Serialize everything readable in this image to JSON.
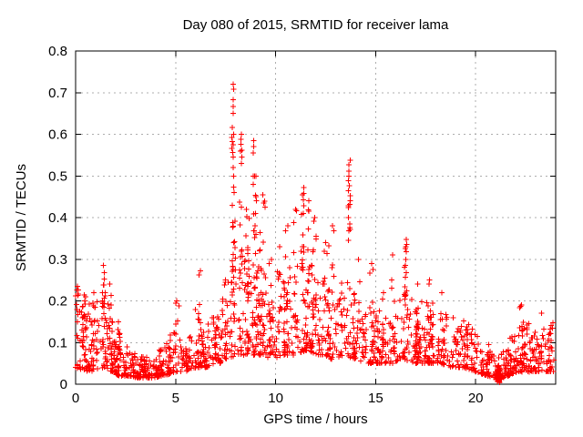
{
  "page": {
    "background": "#ffffff"
  },
  "chart_data": {
    "type": "scatter",
    "title": "Day 080 of 2015, SRMTID for receiver lama",
    "xlabel": "GPS time / hours",
    "ylabel": "SRMTID / TECUs",
    "xlim": [
      0,
      24
    ],
    "ylim": [
      0,
      0.8
    ],
    "xticks": [
      0,
      5,
      10,
      15,
      20
    ],
    "xtick_labels": [
      "0",
      "5",
      "10",
      "15",
      "20"
    ],
    "yticks": [
      0,
      0.1,
      0.2,
      0.3,
      0.4,
      0.5,
      0.6,
      0.7,
      0.8
    ],
    "ytick_labels": [
      "0",
      "0.1",
      "0.2",
      "0.3",
      "0.4",
      "0.5",
      "0.6",
      "0.7",
      "0.8"
    ],
    "grid": true,
    "grid_color": "#adadad",
    "marker": "plus",
    "marker_color": "#ff0000",
    "marker_size": 7,
    "seed": 11,
    "notable_points": [
      [
        7.85,
        0.72
      ],
      [
        8.28,
        0.6
      ],
      [
        8.9,
        0.585
      ],
      [
        11.38,
        0.472
      ],
      [
        13.68,
        0.538
      ],
      [
        16.52,
        0.348
      ],
      [
        1.42,
        0.285
      ],
      [
        6.25,
        0.272
      ],
      [
        9.0,
        0.5
      ],
      [
        21.2,
        0.008
      ]
    ],
    "distribution": {
      "data_t_max": 23.9,
      "n_baseline": 1600,
      "baseline_skew": 2.0,
      "envelope_nodes": [
        [
          0.0,
          0.04,
          0.24
        ],
        [
          0.7,
          0.03,
          0.2
        ],
        [
          1.4,
          0.04,
          0.26
        ],
        [
          1.8,
          0.03,
          0.18
        ],
        [
          2.2,
          0.02,
          0.13
        ],
        [
          2.6,
          0.02,
          0.09
        ],
        [
          3.2,
          0.015,
          0.065
        ],
        [
          3.8,
          0.015,
          0.07
        ],
        [
          4.4,
          0.02,
          0.09
        ],
        [
          5.0,
          0.03,
          0.16
        ],
        [
          5.5,
          0.03,
          0.12
        ],
        [
          6.0,
          0.04,
          0.18
        ],
        [
          6.6,
          0.04,
          0.15
        ],
        [
          7.2,
          0.05,
          0.18
        ],
        [
          7.7,
          0.06,
          0.28
        ],
        [
          8.1,
          0.07,
          0.32
        ],
        [
          8.6,
          0.07,
          0.3
        ],
        [
          9.2,
          0.07,
          0.3
        ],
        [
          9.8,
          0.06,
          0.25
        ],
        [
          10.4,
          0.07,
          0.28
        ],
        [
          11.0,
          0.07,
          0.28
        ],
        [
          11.6,
          0.08,
          0.3
        ],
        [
          12.2,
          0.07,
          0.26
        ],
        [
          12.8,
          0.06,
          0.24
        ],
        [
          13.4,
          0.07,
          0.26
        ],
        [
          14.0,
          0.06,
          0.22
        ],
        [
          14.6,
          0.05,
          0.18
        ],
        [
          15.2,
          0.05,
          0.18
        ],
        [
          15.8,
          0.05,
          0.22
        ],
        [
          16.4,
          0.06,
          0.24
        ],
        [
          17.0,
          0.05,
          0.2
        ],
        [
          17.6,
          0.05,
          0.2
        ],
        [
          18.2,
          0.05,
          0.18
        ],
        [
          18.8,
          0.04,
          0.17
        ],
        [
          19.4,
          0.04,
          0.16
        ],
        [
          20.0,
          0.03,
          0.13
        ],
        [
          20.6,
          0.02,
          0.1
        ],
        [
          21.1,
          0.01,
          0.06
        ],
        [
          21.6,
          0.02,
          0.1
        ],
        [
          22.1,
          0.03,
          0.14
        ],
        [
          22.6,
          0.03,
          0.15
        ],
        [
          23.1,
          0.03,
          0.13
        ],
        [
          23.6,
          0.03,
          0.14
        ],
        [
          23.9,
          0.03,
          0.15
        ]
      ],
      "clusters": [
        [
          0.08,
          0.12,
          5,
          0.14,
          0.235,
          1.0
        ],
        [
          0.45,
          0.3,
          10,
          0.08,
          0.2,
          1.2
        ],
        [
          0.9,
          0.25,
          8,
          0.08,
          0.22,
          1.2
        ],
        [
          1.4,
          0.18,
          12,
          0.1,
          0.285,
          1.2
        ],
        [
          1.7,
          0.2,
          8,
          0.08,
          0.24,
          1.3
        ],
        [
          2.15,
          0.25,
          6,
          0.04,
          0.15,
          1.3
        ],
        [
          5.05,
          0.3,
          8,
          0.06,
          0.2,
          1.2
        ],
        [
          6.25,
          0.3,
          10,
          0.07,
          0.272,
          1.4
        ],
        [
          6.9,
          0.3,
          6,
          0.06,
          0.16,
          1.2
        ],
        [
          7.5,
          0.2,
          8,
          0.08,
          0.25,
          1.2
        ],
        [
          7.9,
          0.18,
          22,
          0.15,
          0.5,
          1.2
        ],
        [
          8.25,
          0.15,
          12,
          0.22,
          0.56,
          1.1
        ],
        [
          8.55,
          0.25,
          16,
          0.2,
          0.42,
          1.3
        ],
        [
          8.95,
          0.18,
          12,
          0.22,
          0.5,
          1.2
        ],
        [
          9.35,
          0.3,
          14,
          0.15,
          0.455,
          1.3
        ],
        [
          9.8,
          0.3,
          10,
          0.1,
          0.3,
          1.3
        ],
        [
          10.2,
          0.25,
          8,
          0.12,
          0.33,
          1.3
        ],
        [
          10.6,
          0.25,
          10,
          0.15,
          0.38,
          1.3
        ],
        [
          11.0,
          0.2,
          12,
          0.15,
          0.42,
          1.2
        ],
        [
          11.35,
          0.18,
          14,
          0.18,
          0.455,
          1.1
        ],
        [
          11.65,
          0.15,
          10,
          0.18,
          0.44,
          1.15
        ],
        [
          11.95,
          0.2,
          10,
          0.15,
          0.4,
          1.25
        ],
        [
          12.5,
          0.4,
          12,
          0.1,
          0.34,
          1.3
        ],
        [
          12.85,
          0.15,
          6,
          0.12,
          0.38,
          1.2
        ],
        [
          14.15,
          0.25,
          8,
          0.1,
          0.3,
          1.3
        ],
        [
          14.8,
          0.2,
          6,
          0.1,
          0.29,
          1.3
        ],
        [
          15.4,
          0.3,
          6,
          0.08,
          0.22,
          1.3
        ],
        [
          15.85,
          0.25,
          8,
          0.1,
          0.31,
          1.3
        ],
        [
          16.5,
          0.18,
          12,
          0.12,
          0.33,
          1.15
        ],
        [
          17.1,
          0.3,
          8,
          0.08,
          0.24,
          1.3
        ],
        [
          17.7,
          0.3,
          10,
          0.08,
          0.25,
          1.3
        ],
        [
          18.3,
          0.3,
          8,
          0.07,
          0.22,
          1.3
        ],
        [
          21.15,
          0.12,
          8,
          0.003,
          0.045,
          1.4
        ],
        [
          22.3,
          0.3,
          8,
          0.04,
          0.19,
          1.3
        ],
        [
          23.3,
          0.4,
          8,
          0.04,
          0.17,
          1.2
        ]
      ],
      "peak_columns": [
        {
          "t": 7.85,
          "jitter": 0.1,
          "values": [
            0.72,
            0.708,
            0.683,
            0.667,
            0.65,
            0.616,
            0.6,
            0.592,
            0.583,
            0.575,
            0.566,
            0.556,
            0.545,
            0.52
          ]
        },
        {
          "t": 8.28,
          "jitter": 0.08,
          "values": [
            0.6,
            0.588,
            0.576,
            0.562,
            0.545,
            0.53
          ]
        },
        {
          "t": 8.9,
          "jitter": 0.08,
          "values": [
            0.585,
            0.57,
            0.555,
            0.5,
            0.48
          ]
        },
        {
          "t": 9.0,
          "jitter": 0.08,
          "values": [
            0.5,
            0.45,
            0.44,
            0.41,
            0.38,
            0.36
          ]
        },
        {
          "t": 11.38,
          "jitter": 0.08,
          "values": [
            0.472,
            0.458,
            0.443,
            0.428,
            0.41
          ]
        },
        {
          "t": 13.68,
          "jitter": 0.1,
          "values": [
            0.538,
            0.527,
            0.512,
            0.5,
            0.488,
            0.476,
            0.464,
            0.452,
            0.44,
            0.432,
            0.428,
            0.424,
            0.4,
            0.385,
            0.376,
            0.372,
            0.368,
            0.345
          ]
        },
        {
          "t": 16.52,
          "jitter": 0.08,
          "values": [
            0.348,
            0.335,
            0.318,
            0.3,
            0.285
          ]
        },
        {
          "t": 1.42,
          "jitter": 0.06,
          "values": [
            0.285,
            0.268,
            0.252,
            0.238
          ]
        }
      ],
      "square_marker": {
        "t": 21.2,
        "v": 0.008,
        "size": 5
      }
    }
  }
}
